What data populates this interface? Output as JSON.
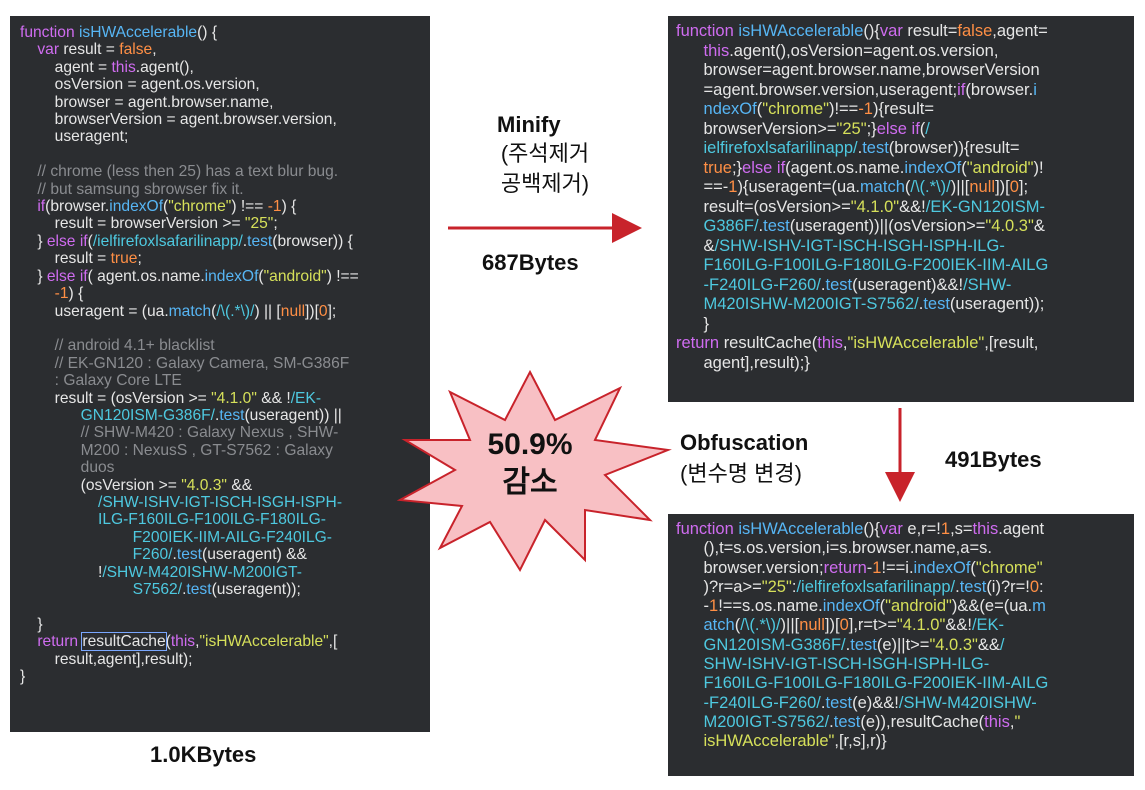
{
  "original": {
    "size_label": "1.0KBytes",
    "lines": [
      [
        [
          "k",
          "function "
        ],
        [
          "f",
          "isHWAccelerable"
        ],
        [
          "p",
          "() {"
        ]
      ],
      [
        [
          "p",
          "    "
        ],
        [
          "k",
          "var"
        ],
        [
          "p",
          " result = "
        ],
        [
          "b",
          "false"
        ],
        [
          "p",
          ","
        ]
      ],
      [
        [
          "p",
          "        agent = "
        ],
        [
          "k",
          "this"
        ],
        [
          "p",
          ".agent(),"
        ]
      ],
      [
        [
          "p",
          "        osVersion = agent.os.version,"
        ]
      ],
      [
        [
          "p",
          "        browser = agent.browser.name,"
        ]
      ],
      [
        [
          "p",
          "        browserVersion = agent.browser.version,"
        ]
      ],
      [
        [
          "p",
          "        useragent;"
        ]
      ],
      [
        [
          "p",
          ""
        ]
      ],
      [
        [
          "c",
          "    // chrome (less then 25) has a text blur bug."
        ]
      ],
      [
        [
          "c",
          "    // but samsung sbrowser fix it."
        ]
      ],
      [
        [
          "k",
          "    if"
        ],
        [
          "p",
          "(browser."
        ],
        [
          "f",
          "indexOf"
        ],
        [
          "p",
          "("
        ],
        [
          "s",
          "\"chrome\""
        ],
        [
          "p",
          ") !== "
        ],
        [
          "b",
          "-1"
        ],
        [
          "p",
          ") {"
        ]
      ],
      [
        [
          "p",
          "        result = browserVersion >= "
        ],
        [
          "s",
          "\"25\""
        ],
        [
          "p",
          ";"
        ]
      ],
      [
        [
          "p",
          "    } "
        ],
        [
          "k",
          "else if"
        ],
        [
          "p",
          "("
        ],
        [
          "r",
          "/ielfirefoxlsafarilinapp/"
        ],
        [
          "p",
          "."
        ],
        [
          "f",
          "test"
        ],
        [
          "p",
          "(browser)) {"
        ]
      ],
      [
        [
          "p",
          "        result = "
        ],
        [
          "b",
          "true"
        ],
        [
          "p",
          ";"
        ]
      ],
      [
        [
          "p",
          "    } "
        ],
        [
          "k",
          "else if"
        ],
        [
          "p",
          "( agent.os.name."
        ],
        [
          "f",
          "indexOf"
        ],
        [
          "p",
          "("
        ],
        [
          "s",
          "\"android\""
        ],
        [
          "p",
          ") !=="
        ]
      ],
      [
        [
          "p",
          "        "
        ],
        [
          "b",
          "-1"
        ],
        [
          "p",
          ") {"
        ]
      ],
      [
        [
          "p",
          "        useragent = (ua."
        ],
        [
          "f",
          "match"
        ],
        [
          "p",
          "("
        ],
        [
          "r",
          "/\\(.*\\)/"
        ],
        [
          "p",
          ") || ["
        ],
        [
          "b",
          "null"
        ],
        [
          "p",
          "])["
        ],
        [
          "b",
          "0"
        ],
        [
          "p",
          "];"
        ]
      ],
      [
        [
          "p",
          ""
        ]
      ],
      [
        [
          "c",
          "        // android 4.1+ blacklist"
        ]
      ],
      [
        [
          "c",
          "        // EK-GN120 : Galaxy Camera, SM-G386F"
        ]
      ],
      [
        [
          "c",
          "        : Galaxy Core LTE"
        ]
      ],
      [
        [
          "p",
          "        result = (osVersion >= "
        ],
        [
          "s",
          "\"4.1.0\""
        ],
        [
          "p",
          " && !"
        ],
        [
          "r",
          "/EK-"
        ]
      ],
      [
        [
          "r",
          "              GN120ISM-G386F/"
        ],
        [
          "p",
          "."
        ],
        [
          "f",
          "test"
        ],
        [
          "p",
          "(useragent)) ||"
        ]
      ],
      [
        [
          "c",
          "              // SHW-M420 : Galaxy Nexus , SHW-"
        ]
      ],
      [
        [
          "c",
          "              M200 : NexusS , GT-S7562 : Galaxy"
        ]
      ],
      [
        [
          "c",
          "              duos"
        ]
      ],
      [
        [
          "p",
          "              (osVersion >= "
        ],
        [
          "s",
          "\"4.0.3\""
        ],
        [
          "p",
          " &&"
        ]
      ],
      [
        [
          "r",
          "                  /SHW-ISHV-IGT-ISCH-ISGH-ISPH-"
        ]
      ],
      [
        [
          "r",
          "                  ILG-F160ILG-F100ILG-F180ILG-"
        ]
      ],
      [
        [
          "r",
          "                          F200IEK-IIM-AILG-F240ILG-"
        ]
      ],
      [
        [
          "r",
          "                          F260/"
        ],
        [
          "p",
          "."
        ],
        [
          "f",
          "test"
        ],
        [
          "p",
          "(useragent) &&"
        ]
      ],
      [
        [
          "p",
          "                  !"
        ],
        [
          "r",
          "/SHW-M420ISHW-M200IGT-"
        ]
      ],
      [
        [
          "r",
          "                          S7562/"
        ],
        [
          "p",
          "."
        ],
        [
          "f",
          "test"
        ],
        [
          "p",
          "(useragent));"
        ]
      ],
      [
        [
          "p",
          ""
        ]
      ],
      [
        [
          "p",
          "    }"
        ]
      ],
      [
        [
          "k",
          "    return "
        ],
        [
          "box",
          "resultCache"
        ],
        [
          "p",
          "("
        ],
        [
          "k",
          "this"
        ],
        [
          "p",
          ","
        ],
        [
          "s",
          "\"isHWAccelerable\""
        ],
        [
          "p",
          ",["
        ]
      ],
      [
        [
          "p",
          "        result,agent],result);"
        ]
      ],
      [
        [
          "p",
          "}"
        ]
      ]
    ]
  },
  "minified": {
    "lines": [
      [
        [
          "k",
          "function "
        ],
        [
          "f",
          "isHWAccelerable"
        ],
        [
          "p",
          "(){"
        ],
        [
          "k",
          "var"
        ],
        [
          "p",
          " result="
        ],
        [
          "b",
          "false"
        ],
        [
          "p",
          ",agent="
        ]
      ],
      [
        [
          "p",
          "      "
        ],
        [
          "k",
          "this"
        ],
        [
          "p",
          ".agent(),osVersion=agent.os.version,"
        ]
      ],
      [
        [
          "p",
          "      browser=agent.browser.name,browserVersion"
        ]
      ],
      [
        [
          "p",
          "      =agent.browser.version,useragent;"
        ],
        [
          "k",
          "if"
        ],
        [
          "p",
          "(browser."
        ],
        [
          "f",
          "i"
        ]
      ],
      [
        [
          "p",
          "      "
        ],
        [
          "f",
          "ndexOf"
        ],
        [
          "p",
          "("
        ],
        [
          "s",
          "\"chrome\""
        ],
        [
          "p",
          ")!=="
        ],
        [
          "b",
          "-1"
        ],
        [
          "p",
          "){result="
        ]
      ],
      [
        [
          "p",
          "      browserVersion>="
        ],
        [
          "s",
          "\"25\""
        ],
        [
          "p",
          ";}"
        ],
        [
          "k",
          "else if"
        ],
        [
          "p",
          "("
        ],
        [
          "r",
          "/"
        ]
      ],
      [
        [
          "r",
          "      ielfirefoxlsafarilinapp/"
        ],
        [
          "p",
          "."
        ],
        [
          "f",
          "test"
        ],
        [
          "p",
          "(browser)){result="
        ]
      ],
      [
        [
          "b",
          "      true"
        ],
        [
          "p",
          ";}"
        ],
        [
          "k",
          "else if"
        ],
        [
          "p",
          "(agent.os.name."
        ],
        [
          "f",
          "indexOf"
        ],
        [
          "p",
          "("
        ],
        [
          "s",
          "\"android\""
        ],
        [
          "p",
          ")!"
        ]
      ],
      [
        [
          "p",
          "      ==-"
        ],
        [
          "b",
          "1"
        ],
        [
          "p",
          "){useragent=(ua."
        ],
        [
          "f",
          "match"
        ],
        [
          "p",
          "("
        ],
        [
          "r",
          "/\\(.*\\)/"
        ],
        [
          "p",
          ")||["
        ],
        [
          "b",
          "null"
        ],
        [
          "p",
          "])["
        ],
        [
          "b",
          "0"
        ],
        [
          "p",
          "];"
        ]
      ],
      [
        [
          "p",
          "      result=(osVersion>="
        ],
        [
          "s",
          "\"4.1.0\""
        ],
        [
          "p",
          "&&!"
        ],
        [
          "r",
          "/EK-GN120ISM-"
        ]
      ],
      [
        [
          "r",
          "      G386F/"
        ],
        [
          "p",
          "."
        ],
        [
          "f",
          "test"
        ],
        [
          "p",
          "(useragent))||(osVersion>="
        ],
        [
          "s",
          "\"4.0.3\""
        ],
        [
          "p",
          "&"
        ]
      ],
      [
        [
          "p",
          "      &"
        ],
        [
          "r",
          "/SHW-ISHV-IGT-ISCH-ISGH-ISPH-ILG-"
        ]
      ],
      [
        [
          "r",
          "      F160ILG-F100ILG-F180ILG-F200IEK-IIM-AILG"
        ]
      ],
      [
        [
          "r",
          "      -F240ILG-F260/"
        ],
        [
          "p",
          "."
        ],
        [
          "f",
          "test"
        ],
        [
          "p",
          "(useragent)&&!"
        ],
        [
          "r",
          "/SHW-"
        ]
      ],
      [
        [
          "r",
          "      M420ISHW-M200IGT-S7562/"
        ],
        [
          "p",
          "."
        ],
        [
          "f",
          "test"
        ],
        [
          "p",
          "(useragent));"
        ]
      ],
      [
        [
          "p",
          "      }"
        ]
      ],
      [
        [
          "k",
          "return "
        ],
        [
          "p",
          "resultCache("
        ],
        [
          "k",
          "this"
        ],
        [
          "p",
          ","
        ],
        [
          "s",
          "\"isHWAccelerable\""
        ],
        [
          "p",
          ",[result,"
        ]
      ],
      [
        [
          "p",
          "      agent],result);}"
        ]
      ]
    ]
  },
  "obfuscated": {
    "lines": [
      [
        [
          "k",
          "function "
        ],
        [
          "f",
          "isHWAccelerable"
        ],
        [
          "p",
          "(){"
        ],
        [
          "k",
          "var"
        ],
        [
          "p",
          " e,r=!"
        ],
        [
          "b",
          "1"
        ],
        [
          "p",
          ",s="
        ],
        [
          "k",
          "this"
        ],
        [
          "p",
          ".agent"
        ]
      ],
      [
        [
          "p",
          "      (),t=s.os.version,i=s.browser.name,a=s."
        ]
      ],
      [
        [
          "p",
          "      browser.version;"
        ],
        [
          "k",
          "return"
        ],
        [
          "p",
          "-"
        ],
        [
          "b",
          "1"
        ],
        [
          "p",
          "!==i."
        ],
        [
          "f",
          "indexOf"
        ],
        [
          "p",
          "("
        ],
        [
          "s",
          "\"chrome\""
        ]
      ],
      [
        [
          "p",
          "      )?r=a>="
        ],
        [
          "s",
          "\"25\""
        ],
        [
          "p",
          ":"
        ],
        [
          "r",
          "/ielfirefoxlsafarilinapp/"
        ],
        [
          "p",
          "."
        ],
        [
          "f",
          "test"
        ],
        [
          "p",
          "(i)?r=!"
        ],
        [
          "b",
          "0"
        ],
        [
          "p",
          ":"
        ]
      ],
      [
        [
          "p",
          "      -"
        ],
        [
          "b",
          "1"
        ],
        [
          "p",
          "!==s.os.name."
        ],
        [
          "f",
          "indexOf"
        ],
        [
          "p",
          "("
        ],
        [
          "s",
          "\"android\""
        ],
        [
          "p",
          ")&&(e=(ua."
        ],
        [
          "f",
          "m"
        ]
      ],
      [
        [
          "f",
          "      atch"
        ],
        [
          "p",
          "("
        ],
        [
          "r",
          "/\\(.*\\)/"
        ],
        [
          "p",
          ")||["
        ],
        [
          "b",
          "null"
        ],
        [
          "p",
          "])["
        ],
        [
          "b",
          "0"
        ],
        [
          "p",
          "],r=t>="
        ],
        [
          "s",
          "\"4.1.0\""
        ],
        [
          "p",
          "&&!"
        ],
        [
          "r",
          "/EK-"
        ]
      ],
      [
        [
          "r",
          "      GN120ISM-G386F/"
        ],
        [
          "p",
          "."
        ],
        [
          "f",
          "test"
        ],
        [
          "p",
          "(e)||t>="
        ],
        [
          "s",
          "\"4.0.3\""
        ],
        [
          "p",
          "&&"
        ],
        [
          "r",
          "/"
        ]
      ],
      [
        [
          "r",
          "      SHW-ISHV-IGT-ISCH-ISGH-ISPH-ILG-"
        ]
      ],
      [
        [
          "r",
          "      F160ILG-F100ILG-F180ILG-F200IEK-IIM-AILG"
        ]
      ],
      [
        [
          "r",
          "      -F240ILG-F260/"
        ],
        [
          "p",
          "."
        ],
        [
          "f",
          "test"
        ],
        [
          "p",
          "(e)&&!"
        ],
        [
          "r",
          "/SHW-M420ISHW-"
        ]
      ],
      [
        [
          "r",
          "      M200IGT-S7562/"
        ],
        [
          "p",
          "."
        ],
        [
          "f",
          "test"
        ],
        [
          "p",
          "(e)),resultCache("
        ],
        [
          "k",
          "this"
        ],
        [
          "p",
          ","
        ],
        [
          "s",
          "\""
        ]
      ],
      [
        [
          "s",
          "      isHWAccelerable\""
        ],
        [
          "p",
          ",[r,s],r)}"
        ]
      ]
    ]
  },
  "labels": {
    "minify_title": "Minify",
    "minify_note_1": "(주석제거",
    "minify_note_2": "공백제거)",
    "minify_size": "687Bytes",
    "obf_title": "Obfuscation",
    "obf_note": "(변수명 변경)",
    "obf_size": "491Bytes",
    "reduction_1": "50.9%",
    "reduction_2": "감소"
  },
  "colors": {
    "arrow": "#c8232b",
    "burst_fill": "#f8c0c4",
    "burst_stroke": "#c8232b",
    "code_bg": "#2b2d30"
  }
}
